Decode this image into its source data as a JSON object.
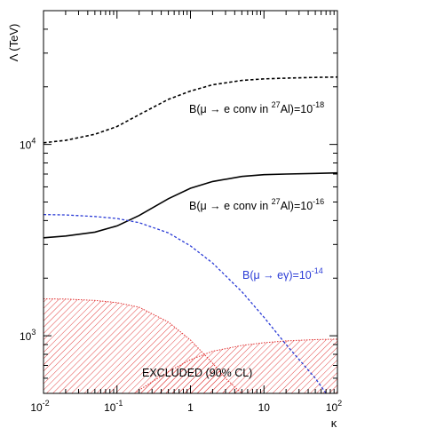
{
  "chart_data": {
    "type": "line",
    "title": "",
    "xlabel": "κ",
    "ylabel": "Λ (TeV)",
    "xscale": "log",
    "yscale": "log",
    "xlim": [
      0.01,
      100
    ],
    "ylim": [
      500,
      50000
    ],
    "grid": false,
    "x_ticks": [
      {
        "value": 0.01,
        "base": "10",
        "exp": "-2"
      },
      {
        "value": 0.1,
        "base": "10",
        "exp": "-1"
      },
      {
        "value": 1,
        "base": "1",
        "exp": ""
      },
      {
        "value": 10,
        "base": "10",
        "exp": ""
      },
      {
        "value": 100,
        "base": "10",
        "exp": "2"
      }
    ],
    "y_ticks": [
      {
        "value": 1000,
        "base": "10",
        "exp": "3"
      },
      {
        "value": 10000,
        "base": "10",
        "exp": "4"
      }
    ],
    "series": [
      {
        "name": "B(μ → e conv in 27Al)=10-18",
        "style": "dashed",
        "color": "#000000",
        "x": [
          0.01,
          0.02,
          0.05,
          0.1,
          0.2,
          0.5,
          1,
          2,
          5,
          10,
          20,
          50,
          100
        ],
        "y": [
          10200,
          10500,
          11300,
          12400,
          14300,
          17200,
          19000,
          20500,
          21600,
          22000,
          22200,
          22400,
          22500
        ]
      },
      {
        "name": "B(μ → e conv in 27Al)=10-16",
        "style": "solid",
        "color": "#000000",
        "x": [
          0.01,
          0.02,
          0.05,
          0.1,
          0.2,
          0.5,
          1,
          2,
          5,
          10,
          20,
          50,
          100
        ],
        "y": [
          3250,
          3320,
          3480,
          3750,
          4250,
          5200,
          5900,
          6400,
          6800,
          6950,
          7000,
          7050,
          7100
        ]
      },
      {
        "name": "B(μ → eγ)=10-14",
        "style": "dashed",
        "color": "#2a3bd6",
        "x": [
          0.01,
          0.02,
          0.05,
          0.1,
          0.2,
          0.5,
          1,
          2,
          5,
          10,
          20,
          50,
          70
        ],
        "y": [
          4300,
          4280,
          4200,
          4100,
          3900,
          3450,
          2950,
          2400,
          1700,
          1250,
          900,
          600,
          500
        ]
      }
    ],
    "excluded_regions": [
      {
        "label": "EXCLUDED (90% CL)",
        "color": "#e03030",
        "x": [
          0.01,
          0.02,
          0.05,
          0.1,
          0.2,
          0.5,
          1,
          2,
          3,
          4,
          5,
          7
        ],
        "y": [
          1560,
          1555,
          1530,
          1490,
          1410,
          1180,
          950,
          720,
          600,
          540,
          500,
          450
        ]
      },
      {
        "label": "",
        "color": "#e03030",
        "x": [
          0.1,
          0.2,
          0.5,
          1,
          2,
          5,
          10,
          20,
          50,
          100
        ],
        "y": [
          430,
          520,
          650,
          750,
          830,
          890,
          920,
          940,
          955,
          960
        ]
      }
    ],
    "annotations": [
      {
        "id": "a18",
        "pre": "B(",
        "mu": "μ",
        "arrow": " → ",
        "mid": "e conv in ",
        "sup_iso": "27",
        "tail": "Al)=10",
        "sup_exp": "-18",
        "color": "#000000"
      },
      {
        "id": "a16",
        "pre": "B(",
        "mu": "μ",
        "arrow": " → ",
        "mid": "e conv in ",
        "sup_iso": "27",
        "tail": "Al)=10",
        "sup_exp": "-16",
        "color": "#000000"
      },
      {
        "id": "aeg",
        "pre": "B(",
        "mu": "μ",
        "arrow": " → ",
        "mid": "eγ)=10",
        "sup_exp": "-14",
        "color": "#2a3bd6"
      },
      {
        "id": "exc",
        "text": "EXCLUDED (90% CL)",
        "color": "#000000"
      }
    ]
  }
}
